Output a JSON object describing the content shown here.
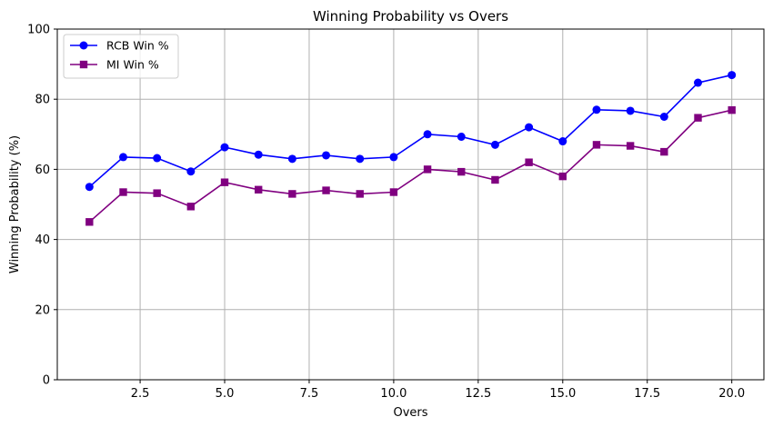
{
  "chart_data": {
    "type": "line",
    "title": "Winning Probability vs Overs",
    "xlabel": "Overs",
    "ylabel": "Winning Probability (%)",
    "xlim": [
      0.05,
      20.95
    ],
    "ylim": [
      0,
      100
    ],
    "xticks": [
      2.5,
      5.0,
      7.5,
      10.0,
      12.5,
      15.0,
      17.5,
      20.0
    ],
    "xtick_labels": [
      "2.5",
      "5.0",
      "7.5",
      "10.0",
      "12.5",
      "15.0",
      "17.5",
      "20.0"
    ],
    "yticks": [
      0,
      20,
      40,
      60,
      80,
      100
    ],
    "ytick_labels": [
      "0",
      "20",
      "40",
      "60",
      "80",
      "100"
    ],
    "grid": true,
    "legend_position": "top-left",
    "x": [
      1,
      2,
      3,
      4,
      5,
      6,
      7,
      8,
      9,
      10,
      11,
      12,
      13,
      14,
      15,
      16,
      17,
      18,
      19,
      20
    ],
    "series": [
      {
        "name": "RCB Win %",
        "color": "#0000ff",
        "marker": "circle",
        "values": [
          55,
          63.5,
          63.2,
          59.4,
          66.3,
          64.2,
          63,
          64,
          63,
          63.5,
          70,
          69.3,
          67,
          72,
          68,
          77,
          76.7,
          75,
          84.7,
          86.9
        ]
      },
      {
        "name": "MI Win %",
        "color": "#800080",
        "marker": "square",
        "values": [
          45,
          53.5,
          53.2,
          49.4,
          56.3,
          54.2,
          53,
          54,
          53,
          53.5,
          60,
          59.3,
          57,
          62,
          58,
          67,
          66.7,
          65,
          74.7,
          76.9
        ]
      }
    ]
  }
}
